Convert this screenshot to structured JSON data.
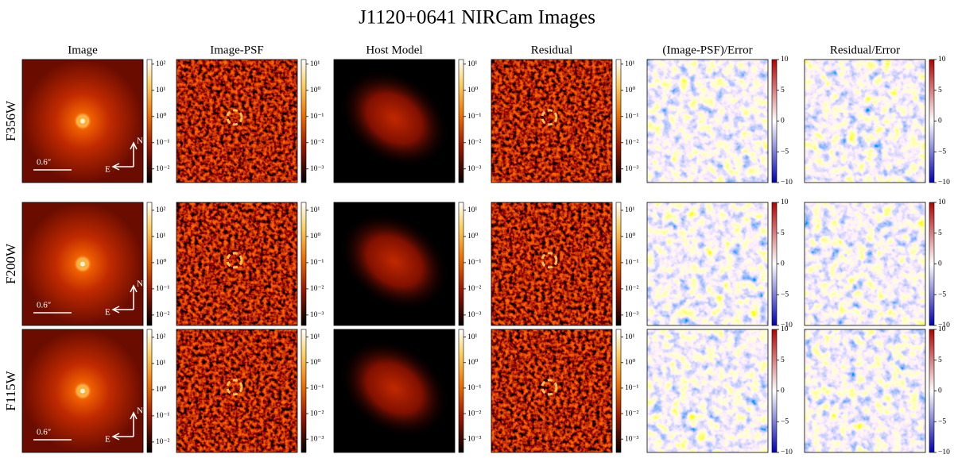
{
  "title": "J1120+0641 NIRCam Images",
  "columns": [
    "Image",
    "Image-PSF",
    "Host Model",
    "Residual",
    "(Image-PSF)/Error",
    "Residual/Error"
  ],
  "scale_bar": "0.6″",
  "compass": {
    "north": "N",
    "east": "E"
  },
  "rows": [
    {
      "label": "F356W",
      "panels": [
        {
          "log": true,
          "lim": [
            0.003,
            150
          ],
          "ticks": [
            {
              "value": 100,
              "label": "10²"
            },
            {
              "value": 10,
              "label": "10¹"
            },
            {
              "value": 1,
              "label": "10⁰"
            },
            {
              "value": 0.1,
              "label": "10⁻¹"
            },
            {
              "value": 0.01,
              "label": "10⁻²"
            }
          ]
        },
        {
          "log": true,
          "lim": [
            0.0003,
            15
          ],
          "ticks": [
            {
              "value": 10,
              "label": "10¹"
            },
            {
              "value": 1,
              "label": "10⁰"
            },
            {
              "value": 0.1,
              "label": "10⁻¹"
            },
            {
              "value": 0.01,
              "label": "10⁻²"
            },
            {
              "value": 0.001,
              "label": "10⁻³"
            }
          ]
        },
        {
          "log": true,
          "lim": [
            0.0003,
            15
          ],
          "ticks": [
            {
              "value": 10,
              "label": "10¹"
            },
            {
              "value": 1,
              "label": "10⁰"
            },
            {
              "value": 0.1,
              "label": "10⁻¹"
            },
            {
              "value": 0.01,
              "label": "10⁻²"
            },
            {
              "value": 0.001,
              "label": "10⁻³"
            }
          ]
        },
        {
          "log": true,
          "lim": [
            0.0003,
            15
          ],
          "ticks": [
            {
              "value": 10,
              "label": "10¹"
            },
            {
              "value": 1,
              "label": "10⁰"
            },
            {
              "value": 0.1,
              "label": "10⁻¹"
            },
            {
              "value": 0.01,
              "label": "10⁻²"
            },
            {
              "value": 0.001,
              "label": "10⁻³"
            }
          ]
        },
        {
          "log": false,
          "lim": [
            -10,
            10
          ],
          "ticks": [
            10,
            5,
            0,
            {
              "value": -5,
              "label": "−5"
            },
            {
              "value": -10,
              "label": "−10"
            }
          ]
        },
        {
          "log": false,
          "lim": [
            -10,
            10
          ],
          "ticks": [
            10,
            5,
            0,
            {
              "value": -5,
              "label": "−5"
            },
            {
              "value": -10,
              "label": "−10"
            }
          ]
        }
      ]
    },
    {
      "label": "F200W",
      "panels": [
        {
          "log": true,
          "lim": [
            0.004,
            200
          ],
          "ticks": [
            {
              "value": 100,
              "label": "10²"
            },
            {
              "value": 10,
              "label": "10¹"
            },
            {
              "value": 1,
              "label": "10⁰"
            },
            {
              "value": 0.1,
              "label": "10⁻¹"
            },
            {
              "value": 0.01,
              "label": "10⁻²"
            }
          ]
        },
        {
          "log": true,
          "lim": [
            0.0004,
            20
          ],
          "ticks": [
            {
              "value": 10,
              "label": "10¹"
            },
            {
              "value": 1,
              "label": "10⁰"
            },
            {
              "value": 0.1,
              "label": "10⁻¹"
            },
            {
              "value": 0.01,
              "label": "10⁻²"
            },
            {
              "value": 0.001,
              "label": "10⁻³"
            }
          ]
        },
        {
          "log": true,
          "lim": [
            0.0004,
            20
          ],
          "ticks": [
            {
              "value": 10,
              "label": "10¹"
            },
            {
              "value": 1,
              "label": "10⁰"
            },
            {
              "value": 0.1,
              "label": "10⁻¹"
            },
            {
              "value": 0.01,
              "label": "10⁻²"
            },
            {
              "value": 0.001,
              "label": "10⁻³"
            }
          ]
        },
        {
          "log": true,
          "lim": [
            0.0004,
            20
          ],
          "ticks": [
            {
              "value": 10,
              "label": "10¹"
            },
            {
              "value": 1,
              "label": "10⁰"
            },
            {
              "value": 0.1,
              "label": "10⁻¹"
            },
            {
              "value": 0.01,
              "label": "10⁻²"
            },
            {
              "value": 0.001,
              "label": "10⁻³"
            }
          ]
        },
        {
          "log": false,
          "lim": [
            -10,
            10
          ],
          "ticks": [
            10,
            5,
            0,
            {
              "value": -5,
              "label": "−5"
            },
            {
              "value": -10,
              "label": "−10"
            }
          ]
        },
        {
          "log": false,
          "lim": [
            -10,
            10
          ],
          "ticks": [
            10,
            5,
            0,
            {
              "value": -5,
              "label": "−5"
            },
            {
              "value": -10,
              "label": "−10"
            }
          ]
        }
      ]
    },
    {
      "label": "F115W",
      "panels": [
        {
          "log": true,
          "lim": [
            0.004,
            200
          ],
          "ticks": [
            {
              "value": 100,
              "label": "10²"
            },
            {
              "value": 10,
              "label": "10¹"
            },
            {
              "value": 1,
              "label": "10⁰"
            },
            {
              "value": 0.1,
              "label": "10⁻¹"
            },
            {
              "value": 0.01,
              "label": "10⁻²"
            }
          ]
        },
        {
          "log": true,
          "lim": [
            0.0003,
            20
          ],
          "ticks": [
            {
              "value": 10,
              "label": "10¹"
            },
            {
              "value": 1,
              "label": "10⁰"
            },
            {
              "value": 0.1,
              "label": "10⁻¹"
            },
            {
              "value": 0.01,
              "label": "10⁻²"
            },
            {
              "value": 0.001,
              "label": "10⁻³"
            }
          ]
        },
        {
          "log": true,
          "lim": [
            0.0003,
            20
          ],
          "ticks": [
            {
              "value": 10,
              "label": "10¹"
            },
            {
              "value": 1,
              "label": "10⁰"
            },
            {
              "value": 0.1,
              "label": "10⁻¹"
            },
            {
              "value": 0.01,
              "label": "10⁻²"
            },
            {
              "value": 0.001,
              "label": "10⁻³"
            }
          ]
        },
        {
          "log": true,
          "lim": [
            0.0003,
            20
          ],
          "ticks": [
            {
              "value": 10,
              "label": "10¹"
            },
            {
              "value": 1,
              "label": "10⁰"
            },
            {
              "value": 0.1,
              "label": "10⁻¹"
            },
            {
              "value": 0.01,
              "label": "10⁻²"
            },
            {
              "value": 0.001,
              "label": "10⁻³"
            }
          ]
        },
        {
          "log": false,
          "lim": [
            -10,
            10
          ],
          "ticks": [
            10,
            5,
            0,
            {
              "value": -5,
              "label": "−5"
            },
            {
              "value": -10,
              "label": "−10"
            }
          ]
        },
        {
          "log": false,
          "lim": [
            -10,
            10
          ],
          "ticks": [
            10,
            5,
            0,
            {
              "value": -5,
              "label": "−5"
            },
            {
              "value": -10,
              "label": "−10"
            }
          ]
        }
      ]
    }
  ]
}
